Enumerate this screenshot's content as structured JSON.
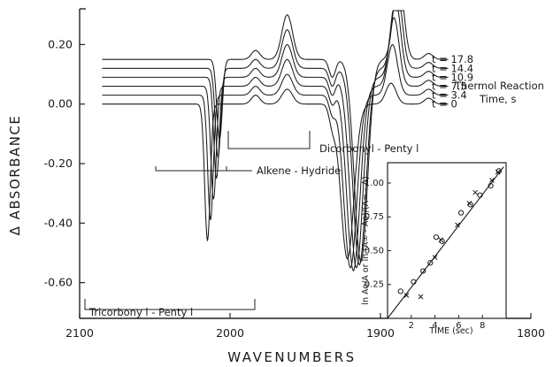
{
  "chart_data": [
    {
      "type": "line",
      "xlabel": "WAVENUMBERS",
      "ylabel": "Δ ABSORBANCE",
      "xlim": [
        2100,
        1800
      ],
      "ylim": [
        -0.72,
        0.32
      ],
      "x_ticks": [
        "2100",
        "2000",
        "1900",
        "1800"
      ],
      "y_ticks": [
        "0.20",
        "0.00",
        "-0.20",
        "-0.40",
        "-0.60"
      ],
      "legend_title": [
        "Thermol Reaction",
        "Time, s"
      ],
      "series": [
        {
          "name": "t = 0",
          "offset": 0.0,
          "peaks": [
            {
              "x": 2015,
              "y": -0.46
            },
            {
              "x": 1922,
              "y": -0.52
            },
            {
              "x": 1893,
              "y": 0.07
            }
          ]
        },
        {
          "name": "t = 3.4",
          "offset": 0.03,
          "peaks": [
            {
              "x": 2013,
              "y": -0.42
            },
            {
              "x": 1920,
              "y": -0.58
            },
            {
              "x": 1892,
              "y": 0.17
            }
          ]
        },
        {
          "name": "t = 7.5",
          "offset": 0.06,
          "peaks": [
            {
              "x": 2011,
              "y": -0.38
            },
            {
              "x": 1918,
              "y": -0.62
            },
            {
              "x": 1891,
              "y": 0.23
            }
          ]
        },
        {
          "name": "t = 10.9",
          "offset": 0.09,
          "peaks": [
            {
              "x": 2009,
              "y": -0.34
            },
            {
              "x": 1916,
              "y": -0.64
            },
            {
              "x": 1890,
              "y": 0.26
            }
          ]
        },
        {
          "name": "t = 14.4",
          "offset": 0.12,
          "peaks": [
            {
              "x": 2008,
              "y": -0.3
            },
            {
              "x": 1914,
              "y": -0.66
            },
            {
              "x": 1889,
              "y": 0.27
            }
          ]
        },
        {
          "name": "t = 17.8",
          "offset": 0.15,
          "peaks": [
            {
              "x": 2007,
              "y": -0.27
            },
            {
              "x": 1913,
              "y": -0.68
            },
            {
              "x": 1888,
              "y": 0.28
            }
          ]
        }
      ],
      "annotations": [
        "Dicorbonyl - Penty l",
        "Alkene - Hydride",
        "Tricorbony l - Penty l"
      ]
    },
    {
      "type": "scatter",
      "xlabel": "TIME (sec)",
      "ylabel": "ln Ao/A or ln (A∞ - Ao)/(A∞ - A)",
      "xlim": [
        0,
        10
      ],
      "ylim": [
        0,
        1.15
      ],
      "x_ticks": [
        "2",
        "4",
        "6",
        "8"
      ],
      "y_ticks": [
        "0.25",
        "0.50",
        "0.75",
        "1.00"
      ],
      "series": [
        {
          "name": "circles",
          "marker": "o",
          "x": [
            1.1,
            2.2,
            3.0,
            3.6,
            4.1,
            4.6,
            6.2,
            7.0,
            7.8,
            8.7,
            9.4
          ],
          "y": [
            0.2,
            0.27,
            0.35,
            0.41,
            0.6,
            0.57,
            0.78,
            0.84,
            0.91,
            0.98,
            1.09
          ]
        },
        {
          "name": "crosses",
          "marker": "x",
          "x": [
            1.6,
            2.8,
            4.0,
            4.5,
            5.9,
            6.9,
            7.4,
            8.8,
            9.3
          ],
          "y": [
            0.17,
            0.16,
            0.45,
            0.58,
            0.69,
            0.85,
            0.93,
            1.02,
            1.08
          ]
        },
        {
          "name": "fit",
          "marker": "line",
          "x": [
            0.0,
            9.8
          ],
          "y": [
            0.0,
            1.12
          ]
        }
      ]
    }
  ]
}
